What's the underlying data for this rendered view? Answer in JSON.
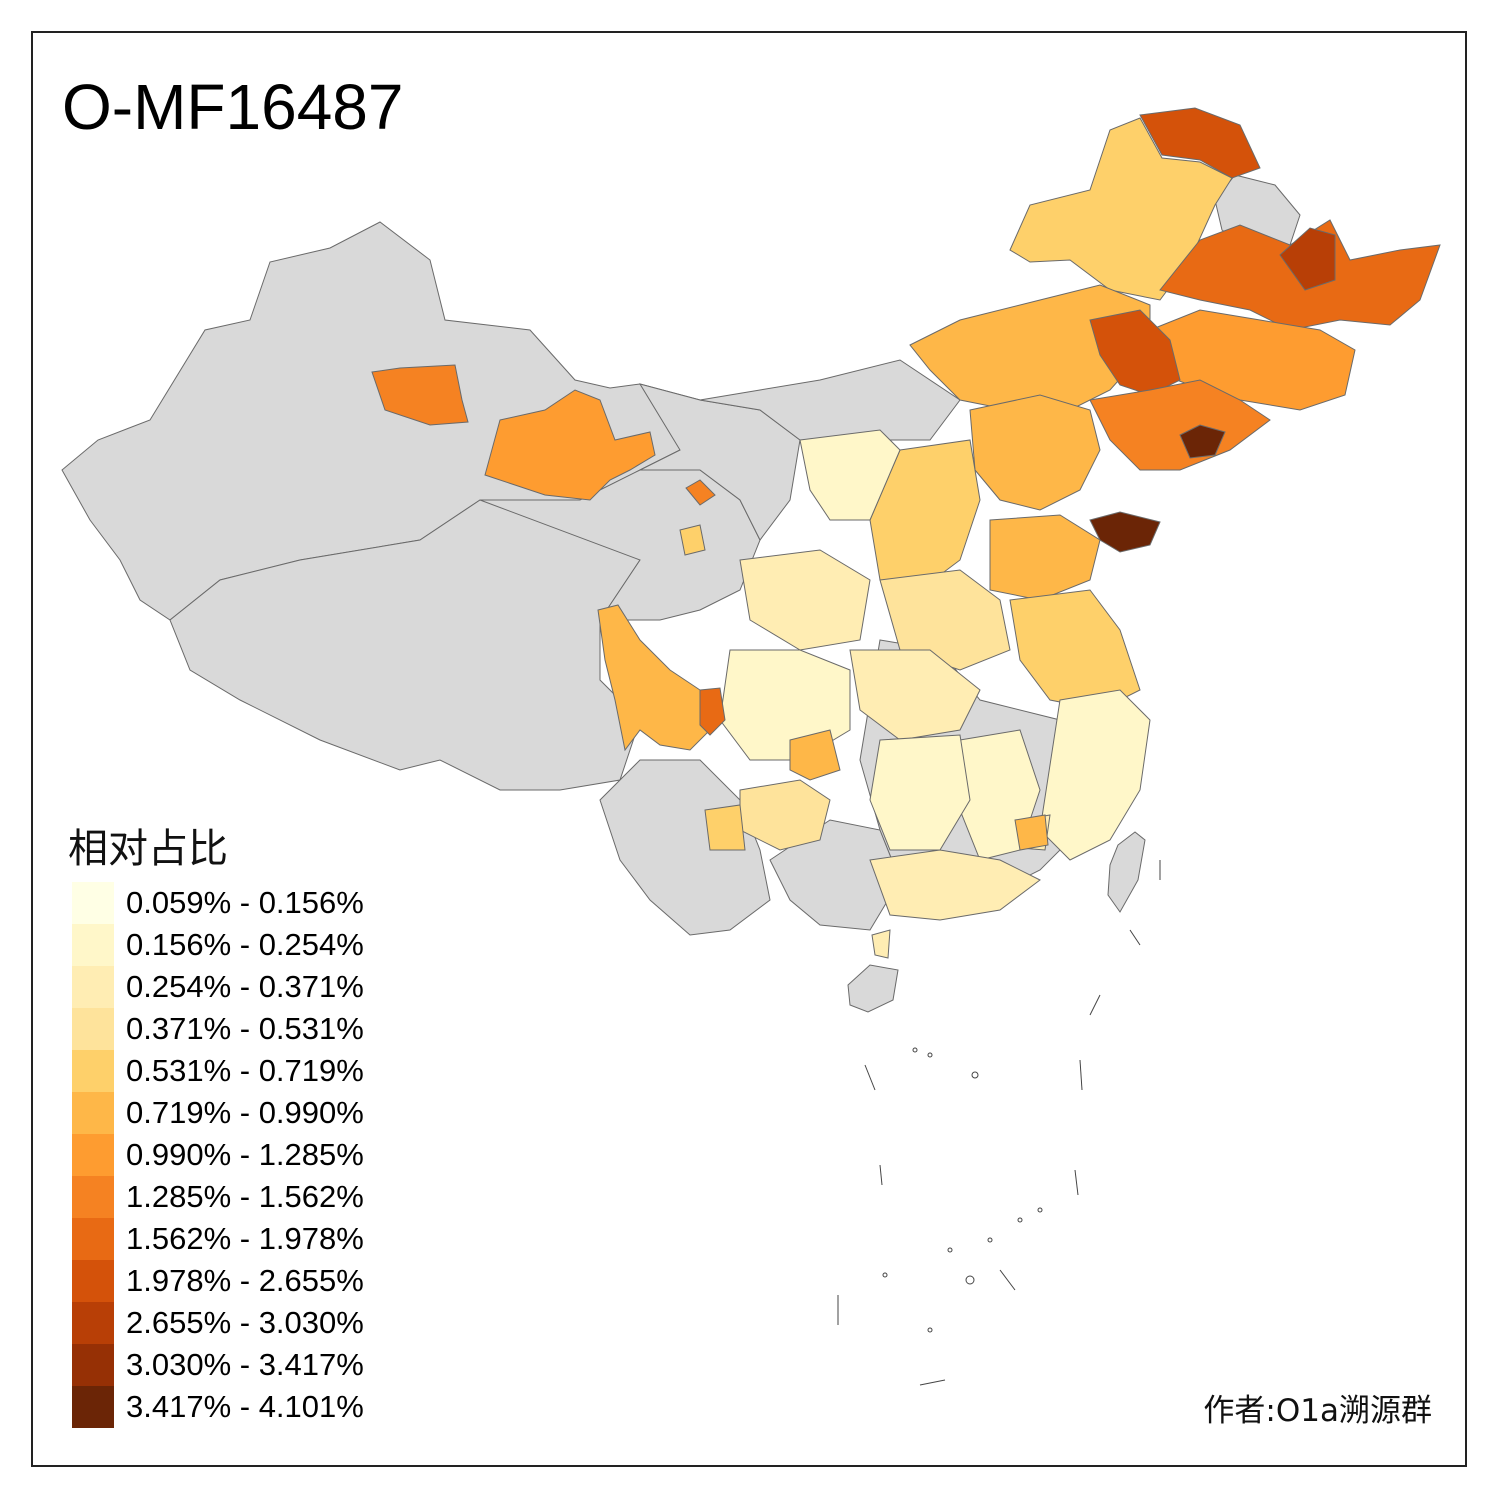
{
  "map": {
    "title": "O-MF16487",
    "legend_title": "相对占比",
    "author": "作者:O1a溯源群",
    "no_data_color": "#d9d9d9",
    "legend": [
      {
        "label": "0.059% - 0.156%",
        "color": "#ffffe5"
      },
      {
        "label": "0.156% - 0.254%",
        "color": "#fff7c9"
      },
      {
        "label": "0.254% - 0.371%",
        "color": "#ffedb3"
      },
      {
        "label": "0.371% - 0.531%",
        "color": "#fee39b"
      },
      {
        "label": "0.531% - 0.719%",
        "color": "#fed06a"
      },
      {
        "label": "0.719% - 0.990%",
        "color": "#feb748"
      },
      {
        "label": "0.990% - 1.285%",
        "color": "#fe9c30"
      },
      {
        "label": "1.285% - 1.562%",
        "color": "#f58222"
      },
      {
        "label": "1.562% - 1.978%",
        "color": "#e86a14"
      },
      {
        "label": "1.978% - 2.655%",
        "color": "#d4520a"
      },
      {
        "label": "2.655% - 3.030%",
        "color": "#b83f06"
      },
      {
        "label": "3.030% - 3.417%",
        "color": "#963005"
      },
      {
        "label": "3.417% - 4.101%",
        "color": "#6b2506"
      }
    ]
  }
}
